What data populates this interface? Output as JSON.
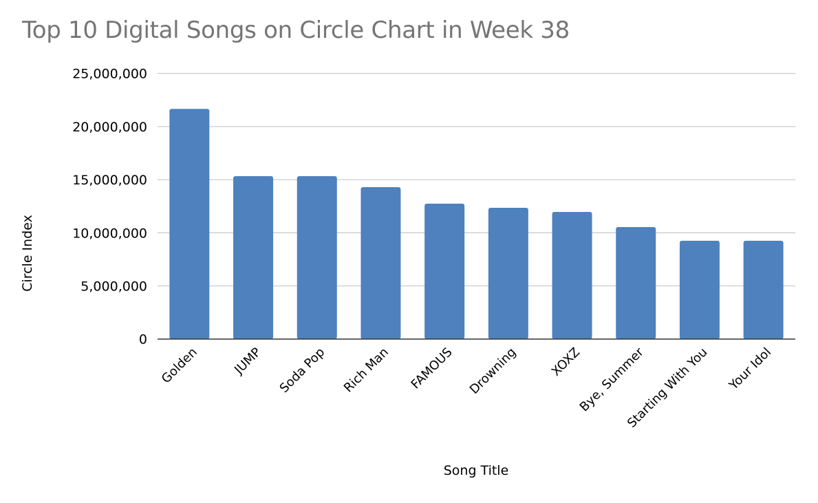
{
  "chart_data": {
    "type": "bar",
    "title": "Top 10 Digital Songs on Circle Chart in Week 38",
    "xlabel": "Song Title",
    "ylabel": "Circle Index",
    "categories": [
      "Golden",
      "JUMP",
      "Soda Pop",
      "Rich Man",
      "FAMOUS",
      "Drowning",
      "XOXZ",
      "Bye, Summer",
      "Starting With You",
      "Your Idol"
    ],
    "values": [
      21660000,
      15330000,
      15330000,
      14290000,
      12740000,
      12350000,
      11960000,
      10540000,
      9250000,
      9250000
    ],
    "ylim": [
      0,
      25000000
    ],
    "yticks": [
      0,
      5000000,
      10000000,
      15000000,
      20000000,
      25000000
    ],
    "ytick_labels": [
      "0",
      "5,000,000",
      "10,000,000",
      "15,000,000",
      "20,000,000",
      "25,000,000"
    ],
    "grid": true,
    "legend": "none",
    "colors": {
      "bar": "#4e81bd",
      "grid": "#cccccc",
      "axis": "#333333",
      "title": "#757575"
    }
  }
}
